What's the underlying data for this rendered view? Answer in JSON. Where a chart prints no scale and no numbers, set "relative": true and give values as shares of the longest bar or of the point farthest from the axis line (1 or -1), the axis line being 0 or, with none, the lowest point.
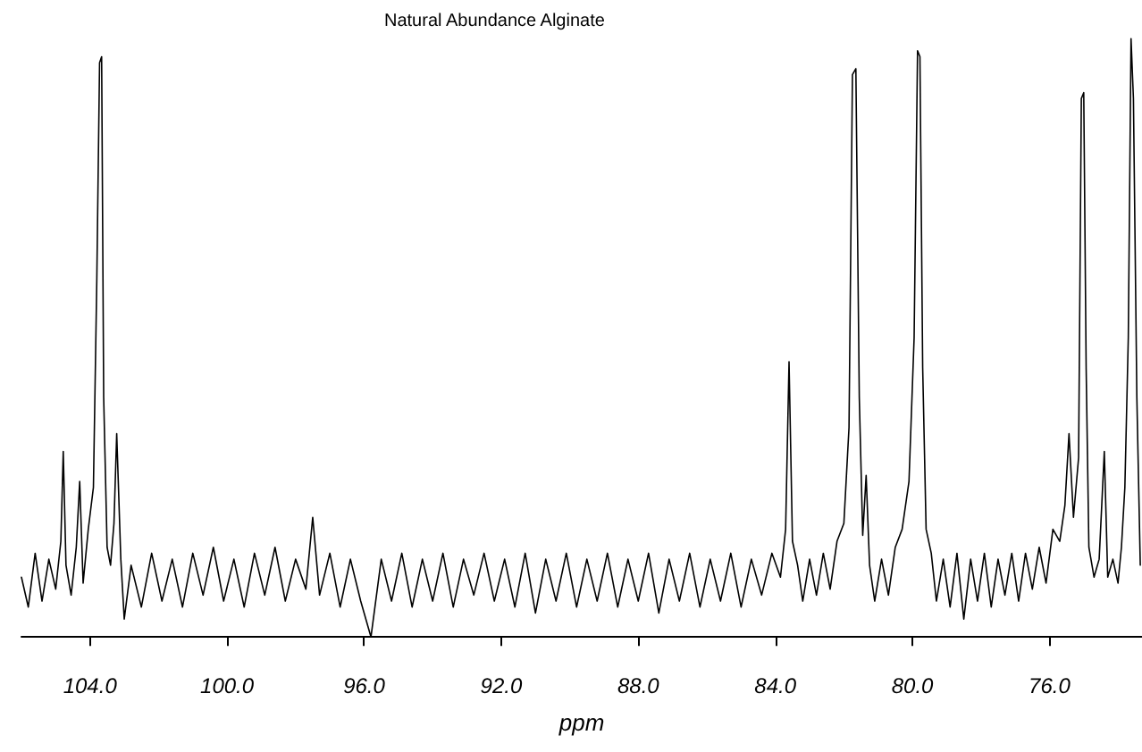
{
  "chart_data": {
    "type": "line",
    "title": "Natural Abundance Alginate",
    "xlabel": "ppm",
    "relative": true,
    "marker": "none",
    "line_style": "solid",
    "xlim": [
      106,
      73.3
    ],
    "xticks": [
      {
        "value": 104,
        "label": "104.0"
      },
      {
        "value": 100,
        "label": "100.0"
      },
      {
        "value": 96,
        "label": "96.0"
      },
      {
        "value": 92,
        "label": "92.0"
      },
      {
        "value": 88,
        "label": "88.0"
      },
      {
        "value": 84,
        "label": "84.0"
      },
      {
        "value": 80,
        "label": "80.0"
      },
      {
        "value": 76,
        "label": "76.0"
      }
    ],
    "tick_labels": "x",
    "x": [
      106.0,
      105.8,
      105.6,
      105.4,
      105.2,
      105.0,
      104.85,
      104.78,
      104.7,
      104.55,
      104.4,
      104.3,
      104.2,
      104.05,
      103.9,
      103.8,
      103.72,
      103.66,
      103.6,
      103.5,
      103.4,
      103.3,
      103.22,
      103.1,
      103.0,
      102.8,
      102.5,
      102.2,
      101.9,
      101.6,
      101.3,
      101.0,
      100.7,
      100.4,
      100.1,
      99.8,
      99.5,
      99.2,
      98.9,
      98.6,
      98.3,
      98.0,
      97.7,
      97.5,
      97.3,
      97.0,
      96.7,
      96.4,
      96.1,
      95.8,
      95.5,
      95.2,
      94.9,
      94.6,
      94.3,
      94.0,
      93.7,
      93.4,
      93.1,
      92.8,
      92.5,
      92.2,
      91.9,
      91.6,
      91.3,
      91.0,
      90.7,
      90.4,
      90.1,
      89.8,
      89.5,
      89.2,
      88.9,
      88.6,
      88.3,
      88.0,
      87.7,
      87.4,
      87.1,
      86.8,
      86.5,
      86.2,
      85.9,
      85.6,
      85.3,
      85.0,
      84.7,
      84.4,
      84.1,
      83.85,
      83.7,
      83.6,
      83.5,
      83.35,
      83.2,
      83.0,
      82.8,
      82.6,
      82.4,
      82.2,
      82.0,
      81.85,
      81.75,
      81.65,
      81.55,
      81.45,
      81.35,
      81.25,
      81.1,
      80.9,
      80.7,
      80.5,
      80.3,
      80.1,
      79.95,
      79.85,
      79.78,
      79.7,
      79.6,
      79.45,
      79.3,
      79.1,
      78.9,
      78.7,
      78.5,
      78.3,
      78.1,
      77.9,
      77.7,
      77.5,
      77.3,
      77.1,
      76.9,
      76.7,
      76.5,
      76.3,
      76.1,
      75.9,
      75.7,
      75.55,
      75.43,
      75.3,
      75.15,
      75.07,
      75.0,
      74.93,
      74.85,
      74.7,
      74.55,
      74.4,
      74.3,
      74.15,
      74.0,
      73.9,
      73.8,
      73.7,
      73.62,
      73.55,
      73.45,
      73.35
    ],
    "series": [
      {
        "color": "#000000",
        "values": [
          0.1,
          0.05,
          0.14,
          0.06,
          0.13,
          0.08,
          0.16,
          0.31,
          0.12,
          0.07,
          0.15,
          0.26,
          0.09,
          0.18,
          0.25,
          0.6,
          0.96,
          0.97,
          0.4,
          0.15,
          0.12,
          0.19,
          0.34,
          0.13,
          0.03,
          0.12,
          0.05,
          0.14,
          0.06,
          0.13,
          0.05,
          0.14,
          0.07,
          0.15,
          0.06,
          0.13,
          0.05,
          0.14,
          0.07,
          0.15,
          0.06,
          0.13,
          0.08,
          0.2,
          0.07,
          0.14,
          0.05,
          0.13,
          0.06,
          0.0,
          0.13,
          0.06,
          0.14,
          0.05,
          0.13,
          0.06,
          0.14,
          0.05,
          0.13,
          0.07,
          0.14,
          0.06,
          0.13,
          0.05,
          0.14,
          0.04,
          0.13,
          0.06,
          0.14,
          0.05,
          0.13,
          0.06,
          0.14,
          0.05,
          0.13,
          0.06,
          0.14,
          0.04,
          0.13,
          0.06,
          0.14,
          0.05,
          0.13,
          0.06,
          0.14,
          0.05,
          0.13,
          0.07,
          0.14,
          0.1,
          0.18,
          0.46,
          0.16,
          0.12,
          0.06,
          0.13,
          0.07,
          0.14,
          0.08,
          0.16,
          0.19,
          0.35,
          0.94,
          0.95,
          0.4,
          0.17,
          0.27,
          0.12,
          0.06,
          0.13,
          0.07,
          0.15,
          0.18,
          0.26,
          0.5,
          0.98,
          0.97,
          0.45,
          0.18,
          0.14,
          0.06,
          0.13,
          0.05,
          0.14,
          0.03,
          0.13,
          0.06,
          0.14,
          0.05,
          0.13,
          0.07,
          0.14,
          0.06,
          0.14,
          0.08,
          0.15,
          0.09,
          0.18,
          0.16,
          0.22,
          0.34,
          0.2,
          0.3,
          0.9,
          0.91,
          0.45,
          0.15,
          0.1,
          0.13,
          0.31,
          0.1,
          0.13,
          0.09,
          0.15,
          0.25,
          0.5,
          1.0,
          0.9,
          0.4,
          0.12
        ]
      }
    ]
  }
}
